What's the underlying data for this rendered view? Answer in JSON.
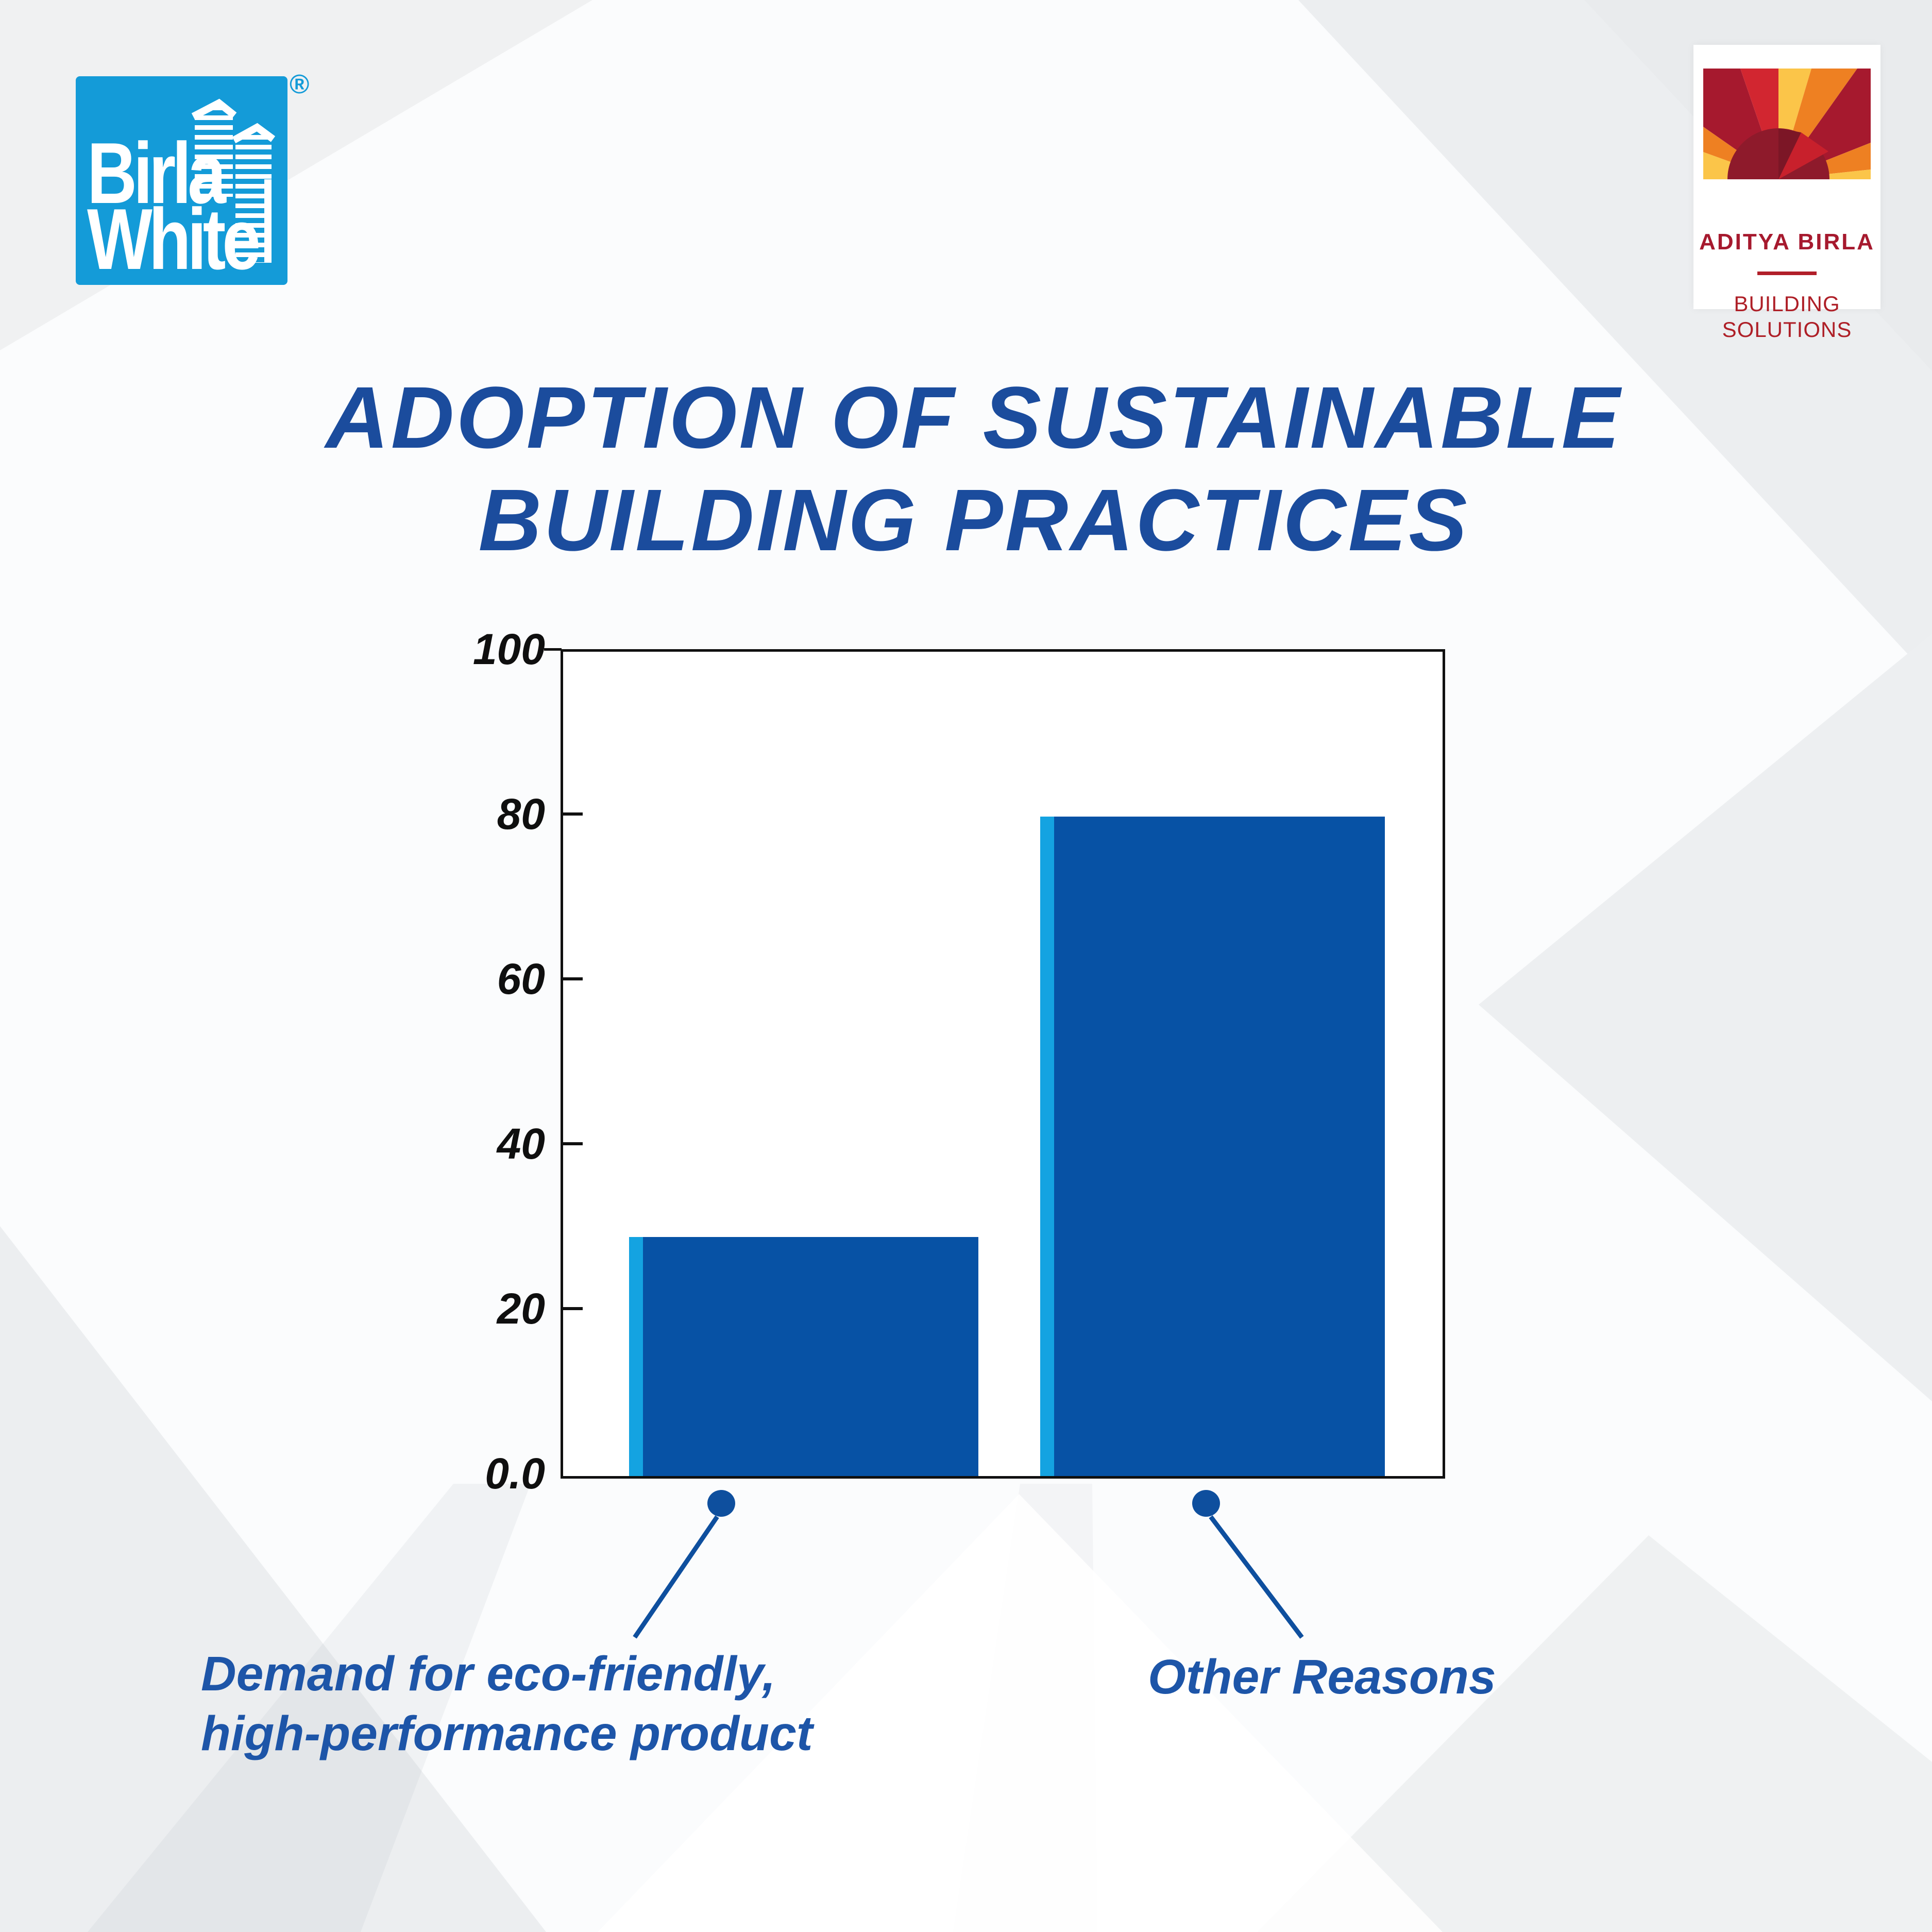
{
  "header": {
    "birla_white_logo": {
      "line1": "Birla",
      "line2": "White",
      "registered": "®",
      "bg_color": "#149BD8"
    },
    "aditya_birla_logo": {
      "company": "ADITYA BIRLA",
      "division_line1": "BUILDING",
      "division_line2": "SOLUTIONS",
      "text_color": "#A6192E"
    }
  },
  "title": {
    "line1": "ADOPTION OF SUSTAINABLE",
    "line2": "BUILDING PRACTICES",
    "color": "#1B4C9D"
  },
  "chart_data": {
    "type": "bar",
    "categories": [
      "Demand for eco-friendly, high-performance product",
      "Other Reasons"
    ],
    "values": [
      29,
      80
    ],
    "title": "ADOPTION OF SUSTAINABLE BUILDING PRACTICES",
    "xlabel": "",
    "ylabel": "",
    "ylim": [
      0,
      100
    ],
    "ytick_values": [
      100,
      80,
      60,
      40,
      20,
      0
    ],
    "ytick_labels": [
      "100",
      "80",
      "60",
      "40",
      "20",
      "0.0"
    ],
    "grid": false,
    "legend": "none",
    "bar_color": "#0752A5",
    "bar_highlight_color": "#14A3E1",
    "axis_color": "#111111",
    "callout_color": "#0E4F9E"
  },
  "callouts": {
    "left": {
      "line1": "Demand for eco-friendly,",
      "line2": "high-performance product"
    },
    "right": {
      "line1": "Other Reasons"
    }
  }
}
